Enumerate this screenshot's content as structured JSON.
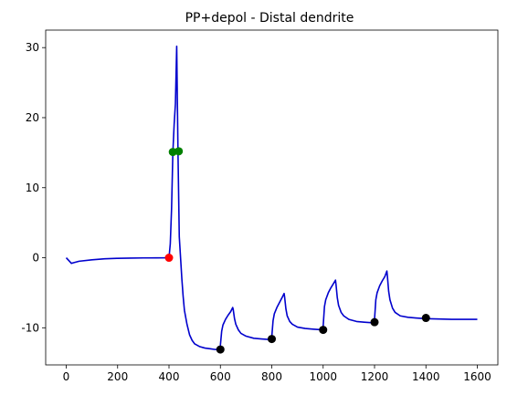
{
  "chart_data": {
    "type": "line",
    "title": "PP+depol - Distal dendrite",
    "xlabel": "",
    "ylabel": "",
    "xlim": [
      -80,
      1680
    ],
    "ylim": [
      -15.3,
      32.5
    ],
    "xticks": [
      0,
      200,
      400,
      600,
      800,
      1000,
      1200,
      1400,
      1600
    ],
    "yticks": [
      -10,
      0,
      10,
      20,
      30
    ],
    "grid": false,
    "legend": "none",
    "colors": {
      "line": "#0000cd",
      "red_marker": "#ff0000",
      "green_marker": "#008000",
      "black_marker": "#000000"
    },
    "series": [
      {
        "x": [
          0,
          10,
          20,
          30,
          50,
          100,
          150,
          200,
          250,
          300,
          350,
          395,
          400,
          405,
          410,
          415,
          420,
          425,
          430,
          435,
          440,
          445,
          450,
          455,
          460,
          470,
          480,
          490,
          500,
          520,
          540,
          560,
          580,
          598,
          600,
          605,
          610,
          620,
          630,
          640,
          648,
          650,
          655,
          660,
          670,
          680,
          700,
          730,
          760,
          798,
          800,
          805,
          810,
          820,
          830,
          840,
          848,
          850,
          855,
          860,
          870,
          880,
          900,
          930,
          960,
          998,
          1000,
          1005,
          1010,
          1020,
          1030,
          1040,
          1048,
          1050,
          1055,
          1060,
          1070,
          1080,
          1100,
          1130,
          1160,
          1198,
          1200,
          1205,
          1210,
          1220,
          1230,
          1240,
          1248,
          1250,
          1255,
          1260,
          1270,
          1280,
          1300,
          1330,
          1360,
          1398,
          1400,
          1450,
          1500,
          1550,
          1600
        ],
        "y": [
          0,
          -0.4,
          -0.8,
          -0.7,
          -0.5,
          -0.3,
          -0.15,
          -0.08,
          -0.05,
          -0.03,
          -0.02,
          -0.01,
          0,
          2,
          7,
          15,
          19,
          22,
          30.2,
          15,
          3,
          0,
          -3,
          -5.5,
          -7.5,
          -9.5,
          -11,
          -11.8,
          -12.3,
          -12.7,
          -12.9,
          -13,
          -13.1,
          -13.1,
          -12.5,
          -10.5,
          -9.6,
          -8.8,
          -8.2,
          -7.7,
          -7.1,
          -7.4,
          -8.7,
          -9.5,
          -10.3,
          -10.8,
          -11.2,
          -11.5,
          -11.6,
          -11.7,
          -11.3,
          -9,
          -8,
          -7.1,
          -6.4,
          -5.7,
          -5.1,
          -5.6,
          -7.3,
          -8.3,
          -9.1,
          -9.5,
          -9.9,
          -10.1,
          -10.2,
          -10.3,
          -9.8,
          -7,
          -6,
          -5,
          -4.3,
          -3.7,
          -3.2,
          -3.8,
          -5.7,
          -6.8,
          -7.8,
          -8.3,
          -8.8,
          -9.1,
          -9.2,
          -9.3,
          -8.8,
          -6,
          -5,
          -4,
          -3.3,
          -2.7,
          -1.9,
          -2.6,
          -4.8,
          -6,
          -7.2,
          -7.8,
          -8.3,
          -8.5,
          -8.6,
          -8.7,
          -8.7,
          -8.75,
          -8.8,
          -8.8,
          -8.8
        ]
      }
    ],
    "markers": [
      {
        "x": 400,
        "y": 0,
        "color": "red"
      },
      {
        "x": 415,
        "y": 15.1,
        "color": "green"
      },
      {
        "x": 438,
        "y": 15.2,
        "color": "green"
      },
      {
        "x": 600,
        "y": -13.1,
        "color": "black"
      },
      {
        "x": 800,
        "y": -11.6,
        "color": "black"
      },
      {
        "x": 1000,
        "y": -10.3,
        "color": "black"
      },
      {
        "x": 1200,
        "y": -9.2,
        "color": "black"
      },
      {
        "x": 1400,
        "y": -8.6,
        "color": "black"
      }
    ]
  }
}
